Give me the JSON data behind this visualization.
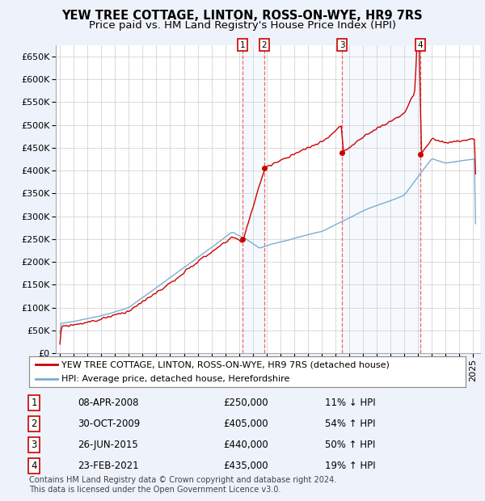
{
  "title": "YEW TREE COTTAGE, LINTON, ROSS-ON-WYE, HR9 7RS",
  "subtitle": "Price paid vs. HM Land Registry's House Price Index (HPI)",
  "ylim": [
    0,
    675000
  ],
  "yticks": [
    0,
    50000,
    100000,
    150000,
    200000,
    250000,
    300000,
    350000,
    400000,
    450000,
    500000,
    550000,
    600000,
    650000
  ],
  "ytick_labels": [
    "£0",
    "£50K",
    "£100K",
    "£150K",
    "£200K",
    "£250K",
    "£300K",
    "£350K",
    "£400K",
    "£450K",
    "£500K",
    "£550K",
    "£600K",
    "£650K"
  ],
  "xlim_start": 1994.7,
  "xlim_end": 2025.5,
  "sale_dates_num": [
    2008.27,
    2009.83,
    2015.48,
    2021.14
  ],
  "sale_prices": [
    250000,
    405000,
    440000,
    435000
  ],
  "sale_labels": [
    "1",
    "2",
    "3",
    "4"
  ],
  "sale_date_strs": [
    "08-APR-2008",
    "30-OCT-2009",
    "26-JUN-2015",
    "23-FEB-2021"
  ],
  "sale_price_strs": [
    "£250,000",
    "£405,000",
    "£440,000",
    "£435,000"
  ],
  "sale_pct_strs": [
    "11% ↓ HPI",
    "54% ↑ HPI",
    "50% ↑ HPI",
    "19% ↑ HPI"
  ],
  "legend_red_label": "YEW TREE COTTAGE, LINTON, ROSS-ON-WYE, HR9 7RS (detached house)",
  "legend_blue_label": "HPI: Average price, detached house, Herefordshire",
  "footer_text": "Contains HM Land Registry data © Crown copyright and database right 2024.\nThis data is licensed under the Open Government Licence v3.0.",
  "bg_color": "#eef2fa",
  "plot_bg_color": "#ffffff",
  "grid_color": "#cccccc",
  "red_color": "#cc0000",
  "blue_color": "#7aadd4",
  "vline_color": "#ee4444",
  "shade_color": "#d8e8f8",
  "box_color": "#cc0000",
  "title_fontsize": 10.5,
  "subtitle_fontsize": 9.5,
  "tick_fontsize": 8,
  "legend_fontsize": 8,
  "table_fontsize": 8.5,
  "footer_fontsize": 7
}
